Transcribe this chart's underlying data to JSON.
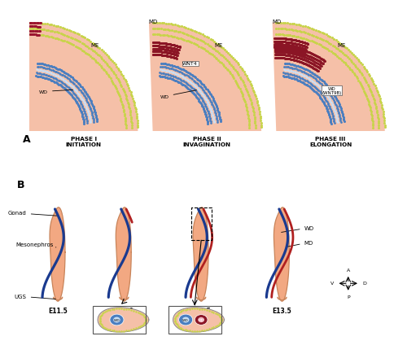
{
  "fig_width": 4.74,
  "fig_height": 4.78,
  "bg_color": "#ffffff",
  "colors": {
    "tissue_pink": "#f5c0a8",
    "tissue_pink2": "#f0b090",
    "ME_green": "#c8d44a",
    "WD_blue": "#4a7ec0",
    "WD_center": "#c8e0f8",
    "MD_red": "#8b1525",
    "body_fill": "#f2a882",
    "body_edge": "#c8845a",
    "blue_duct": "#1a3a8f",
    "red_duct": "#b02020"
  },
  "panel_A_labels": [
    "PHASE I\nINITIATION",
    "PHASE II\nINVAGINATION",
    "PHASE III\nELONGATION"
  ],
  "panel_B_labels": [
    "E11.5",
    "E12.0",
    "E12.5",
    "E13.5"
  ]
}
